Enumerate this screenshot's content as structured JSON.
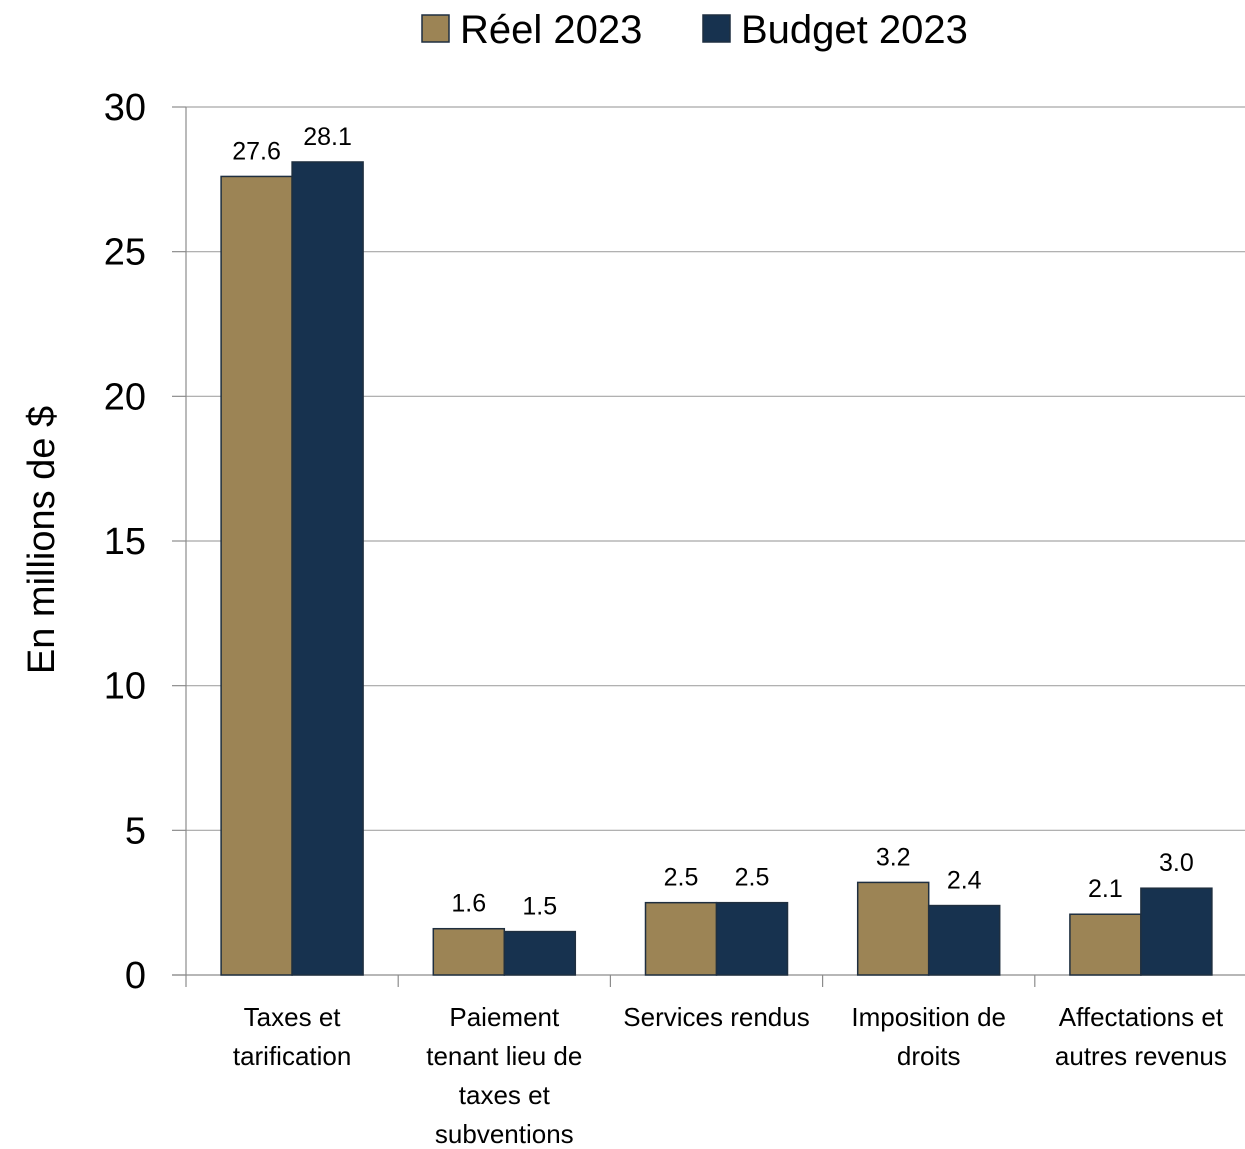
{
  "chart_data": {
    "type": "bar",
    "title": "",
    "xlabel": "",
    "ylabel": "En millions de $",
    "ylim": [
      0,
      30
    ],
    "yticks": [
      0,
      5,
      10,
      15,
      20,
      25,
      30
    ],
    "grid": true,
    "legend_position": "top-center",
    "categories": [
      [
        "Taxes et",
        "tarification"
      ],
      [
        "Paiement",
        "tenant lieu de",
        "taxes et",
        "subventions"
      ],
      [
        "Services rendus"
      ],
      [
        "Imposition de",
        "droits"
      ],
      [
        "Affectations et",
        "autres revenus"
      ]
    ],
    "series": [
      {
        "name": "Réel 2023",
        "color": "#9c8455",
        "values": [
          27.6,
          1.6,
          2.5,
          3.2,
          2.1
        ],
        "labels": [
          "27.6",
          "1.6",
          "2.5",
          "3.2",
          "2.1"
        ]
      },
      {
        "name": "Budget 2023",
        "color": "#17324f",
        "values": [
          28.1,
          1.5,
          2.5,
          2.4,
          3.0
        ],
        "labels": [
          "28.1",
          "1.5",
          "2.5",
          "2.4",
          "3.0"
        ]
      }
    ]
  }
}
